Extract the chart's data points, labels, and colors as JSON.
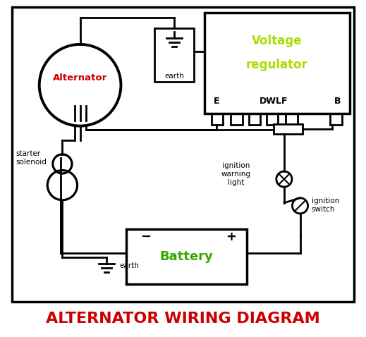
{
  "title": "ALTERNATOR WIRING DIAGRAM",
  "title_color": "#cc0000",
  "alternator_label": "Alternator",
  "alternator_color": "#cc0000",
  "battery_label": "Battery",
  "battery_color": "#33aa00",
  "voltage_reg_line1": "Voltage",
  "voltage_reg_line2": "regulator",
  "voltage_reg_color": "#aadd00",
  "bg_color": "#ffffff",
  "line_color": "#000000",
  "default_lw": 2.0
}
